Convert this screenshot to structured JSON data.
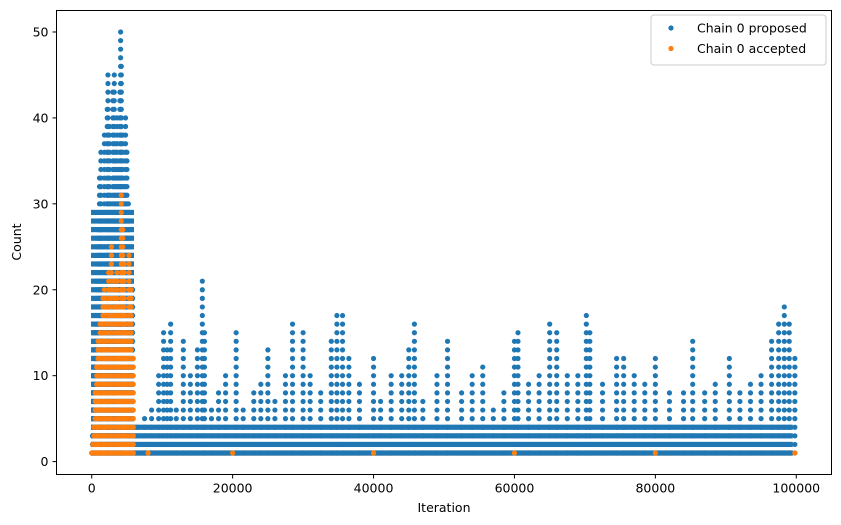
{
  "chart_data": {
    "type": "scatter",
    "xlabel": "Iteration",
    "ylabel": "Count",
    "xlim": [
      -5000,
      105000
    ],
    "ylim": [
      -1.5,
      52.5
    ],
    "x_ticks": [
      0,
      20000,
      40000,
      60000,
      80000,
      100000
    ],
    "x_tick_labels": [
      "0",
      "20000",
      "40000",
      "60000",
      "80000",
      "100000"
    ],
    "y_ticks": [
      0,
      10,
      20,
      30,
      40,
      50
    ],
    "y_tick_labels": [
      "0",
      "10",
      "20",
      "30",
      "40",
      "50"
    ],
    "grid": false,
    "legend_position": "top-right",
    "series": [
      {
        "name": "Chain 0 proposed",
        "color": "#1f77b4",
        "points": [
          [
            0,
            1
          ],
          [
            100,
            3
          ],
          [
            250,
            8
          ],
          [
            400,
            15
          ],
          [
            600,
            22
          ],
          [
            900,
            27
          ],
          [
            1100,
            33
          ],
          [
            1300,
            36
          ],
          [
            1500,
            29
          ],
          [
            1800,
            38
          ],
          [
            2000,
            24
          ],
          [
            2200,
            41
          ],
          [
            2300,
            45
          ],
          [
            2500,
            39
          ],
          [
            2700,
            31
          ],
          [
            3000,
            43
          ],
          [
            3200,
            45
          ],
          [
            3400,
            37
          ],
          [
            3600,
            40
          ],
          [
            3800,
            34
          ],
          [
            4000,
            43
          ],
          [
            4100,
            50
          ],
          [
            4200,
            46
          ],
          [
            4400,
            38
          ],
          [
            4600,
            32
          ],
          [
            4800,
            40
          ],
          [
            5000,
            36
          ],
          [
            5200,
            30
          ],
          [
            5400,
            27
          ],
          [
            5600,
            25
          ],
          [
            5800,
            20
          ],
          [
            6500,
            4
          ],
          [
            7500,
            5
          ],
          [
            8500,
            6
          ],
          [
            9500,
            10
          ],
          [
            10200,
            15
          ],
          [
            10700,
            13
          ],
          [
            11200,
            16
          ],
          [
            12000,
            6
          ],
          [
            13000,
            14
          ],
          [
            14000,
            10
          ],
          [
            15000,
            13
          ],
          [
            15700,
            21
          ],
          [
            16000,
            15
          ],
          [
            17000,
            6
          ],
          [
            18000,
            8
          ],
          [
            19000,
            10
          ],
          [
            20500,
            15
          ],
          [
            21500,
            6
          ],
          [
            23000,
            8
          ],
          [
            24000,
            9
          ],
          [
            25000,
            13
          ],
          [
            26000,
            7
          ],
          [
            27500,
            10
          ],
          [
            28500,
            16
          ],
          [
            30000,
            15
          ],
          [
            31000,
            10
          ],
          [
            32500,
            8
          ],
          [
            34000,
            14
          ],
          [
            34800,
            17
          ],
          [
            35600,
            17
          ],
          [
            36500,
            12
          ],
          [
            38000,
            9
          ],
          [
            40000,
            12
          ],
          [
            41000,
            7
          ],
          [
            42500,
            10
          ],
          [
            44000,
            10
          ],
          [
            45000,
            13
          ],
          [
            45800,
            16
          ],
          [
            47000,
            7
          ],
          [
            49000,
            10
          ],
          [
            50500,
            14
          ],
          [
            52500,
            8
          ],
          [
            54000,
            10
          ],
          [
            55500,
            11
          ],
          [
            57000,
            6
          ],
          [
            58500,
            8
          ],
          [
            60000,
            14
          ],
          [
            60500,
            15
          ],
          [
            62000,
            9
          ],
          [
            63500,
            10
          ],
          [
            65000,
            16
          ],
          [
            66000,
            15
          ],
          [
            67500,
            10
          ],
          [
            69000,
            10
          ],
          [
            70200,
            17
          ],
          [
            70700,
            15
          ],
          [
            72500,
            9
          ],
          [
            74500,
            12
          ],
          [
            75500,
            12
          ],
          [
            77000,
            10
          ],
          [
            78500,
            9
          ],
          [
            80000,
            12
          ],
          [
            82000,
            8
          ],
          [
            84000,
            8
          ],
          [
            85300,
            14
          ],
          [
            87000,
            8
          ],
          [
            88500,
            9
          ],
          [
            90500,
            12
          ],
          [
            92000,
            8
          ],
          [
            93500,
            9
          ],
          [
            95000,
            10
          ],
          [
            96500,
            14
          ],
          [
            97500,
            16
          ],
          [
            98300,
            18
          ],
          [
            99000,
            16
          ],
          [
            99800,
            12
          ]
        ]
      },
      {
        "name": "Chain 0 accepted",
        "color": "#ff7f0e",
        "points": [
          [
            0,
            1
          ],
          [
            150,
            2
          ],
          [
            300,
            4
          ],
          [
            500,
            8
          ],
          [
            700,
            11
          ],
          [
            900,
            14
          ],
          [
            1200,
            16
          ],
          [
            1600,
            19
          ],
          [
            1800,
            20
          ],
          [
            2000,
            19
          ],
          [
            2400,
            22
          ],
          [
            2800,
            25
          ],
          [
            3200,
            21
          ],
          [
            3600,
            22
          ],
          [
            3900,
            18
          ],
          [
            4200,
            31
          ],
          [
            4400,
            27
          ],
          [
            4600,
            23
          ],
          [
            4800,
            17
          ],
          [
            5000,
            15
          ],
          [
            5300,
            24
          ],
          [
            5600,
            20
          ],
          [
            5900,
            12
          ],
          [
            8000,
            1
          ],
          [
            20000,
            1
          ],
          [
            40000,
            1
          ],
          [
            60000,
            1
          ],
          [
            80000,
            1
          ],
          [
            99800,
            1
          ]
        ]
      }
    ]
  }
}
